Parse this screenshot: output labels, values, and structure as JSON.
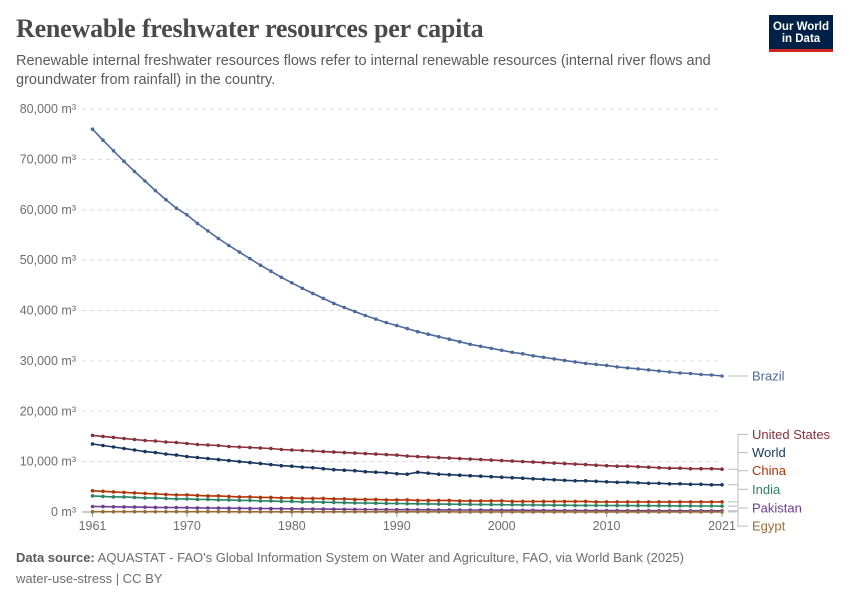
{
  "header": {
    "title": "Renewable freshwater resources per capita",
    "subtitle": "Renewable internal freshwater resources flows refer to internal renewable resources (internal river flows and groundwater from rainfall) in the country."
  },
  "logo": {
    "line1": "Our World",
    "line2": "in Data",
    "bg_color": "#002147",
    "accent_color": "#ce261e"
  },
  "footer": {
    "source_label": "Data source:",
    "source_text": "AQUASTAT - FAO's Global Information System on Water and Agriculture, FAO, via World Bank (2025)",
    "slug": "water-use-stress | CC BY"
  },
  "chart_data": {
    "type": "line",
    "title": "Renewable freshwater resources per capita",
    "xlabel": "",
    "ylabel": "",
    "x": [
      1961,
      1962,
      1963,
      1964,
      1965,
      1966,
      1967,
      1968,
      1969,
      1970,
      1971,
      1972,
      1973,
      1974,
      1975,
      1976,
      1977,
      1978,
      1979,
      1980,
      1981,
      1982,
      1983,
      1984,
      1985,
      1986,
      1987,
      1988,
      1989,
      1990,
      1991,
      1992,
      1993,
      1994,
      1995,
      1996,
      1997,
      1998,
      1999,
      2000,
      2001,
      2002,
      2003,
      2004,
      2005,
      2006,
      2007,
      2008,
      2009,
      2010,
      2011,
      2012,
      2013,
      2014,
      2015,
      2016,
      2017,
      2018,
      2019,
      2020,
      2021
    ],
    "x_ticks": [
      "1961",
      "1970",
      "1980",
      "1990",
      "2000",
      "2010",
      "2021"
    ],
    "x_tick_values": [
      1961,
      1970,
      1980,
      1990,
      2000,
      2010,
      2021
    ],
    "xlim": [
      1960,
      2021
    ],
    "ylim": [
      0,
      80000
    ],
    "y_ticks": [
      0,
      10000,
      20000,
      30000,
      40000,
      50000,
      60000,
      70000,
      80000
    ],
    "y_tick_labels": [
      "0 m³",
      "10,000 m³",
      "20,000 m³",
      "30,000 m³",
      "40,000 m³",
      "50,000 m³",
      "60,000 m³",
      "70,000 m³",
      "80,000 m³"
    ],
    "grid": true,
    "legend": "right-end labels",
    "series": [
      {
        "name": "Brazil",
        "color": "#4c6a9c",
        "label_y": 27000,
        "values": [
          76000,
          73800,
          71700,
          69600,
          67600,
          65700,
          63800,
          62000,
          60300,
          59000,
          57300,
          55800,
          54300,
          52900,
          51600,
          50300,
          49000,
          47800,
          46600,
          45500,
          44400,
          43400,
          42400,
          41400,
          40600,
          39800,
          39000,
          38300,
          37600,
          37000,
          36400,
          35800,
          35300,
          34800,
          34300,
          33800,
          33300,
          32900,
          32500,
          32100,
          31700,
          31400,
          31000,
          30700,
          30400,
          30100,
          29800,
          29500,
          29300,
          29100,
          28800,
          28600,
          28400,
          28200,
          28000,
          27800,
          27600,
          27500,
          27300,
          27200,
          27000
        ]
      },
      {
        "name": "United States",
        "color": "#883039",
        "label_y": 15400,
        "values": [
          15200,
          15000,
          14800,
          14600,
          14400,
          14200,
          14100,
          13900,
          13800,
          13600,
          13400,
          13300,
          13200,
          13000,
          12900,
          12800,
          12700,
          12600,
          12400,
          12300,
          12200,
          12100,
          12000,
          11900,
          11800,
          11700,
          11600,
          11500,
          11400,
          11300,
          11100,
          11000,
          10900,
          10800,
          10700,
          10600,
          10500,
          10400,
          10300,
          10200,
          10100,
          10000,
          9900,
          9800,
          9700,
          9600,
          9500,
          9400,
          9300,
          9200,
          9100,
          9100,
          9000,
          8900,
          8800,
          8700,
          8700,
          8600,
          8600,
          8600,
          8500
        ]
      },
      {
        "name": "World",
        "color": "#18375f",
        "label_y": 11800,
        "values": [
          13500,
          13200,
          12900,
          12600,
          12300,
          12000,
          11800,
          11500,
          11300,
          11000,
          10800,
          10600,
          10400,
          10200,
          10000,
          9800,
          9600,
          9400,
          9200,
          9100,
          8900,
          8800,
          8600,
          8400,
          8300,
          8200,
          8000,
          7900,
          7800,
          7600,
          7500,
          7900,
          7700,
          7500,
          7400,
          7300,
          7200,
          7100,
          7000,
          6900,
          6800,
          6700,
          6600,
          6500,
          6400,
          6300,
          6200,
          6200,
          6100,
          6000,
          5900,
          5900,
          5800,
          5700,
          5700,
          5600,
          5600,
          5500,
          5500,
          5400,
          5400
        ]
      },
      {
        "name": "China",
        "color": "#b13507",
        "label_y": 8200,
        "values": [
          4200,
          4100,
          4000,
          3900,
          3800,
          3700,
          3600,
          3500,
          3400,
          3400,
          3300,
          3200,
          3200,
          3100,
          3000,
          3000,
          2900,
          2900,
          2800,
          2800,
          2700,
          2700,
          2700,
          2600,
          2600,
          2500,
          2500,
          2500,
          2400,
          2400,
          2400,
          2300,
          2300,
          2300,
          2300,
          2200,
          2200,
          2200,
          2200,
          2200,
          2100,
          2100,
          2100,
          2100,
          2100,
          2100,
          2100,
          2100,
          2000,
          2000,
          2000,
          2000,
          2000,
          2000,
          2000,
          2000,
          2000,
          2000,
          2000,
          2000,
          2000
        ]
      },
      {
        "name": "India",
        "color": "#2c8465",
        "label_y": 4500,
        "values": [
          3200,
          3100,
          3000,
          3000,
          2900,
          2800,
          2800,
          2700,
          2600,
          2600,
          2500,
          2500,
          2400,
          2400,
          2300,
          2300,
          2200,
          2200,
          2100,
          2100,
          2000,
          2000,
          1950,
          1900,
          1850,
          1800,
          1780,
          1750,
          1700,
          1680,
          1650,
          1620,
          1600,
          1570,
          1550,
          1520,
          1500,
          1480,
          1460,
          1440,
          1420,
          1400,
          1380,
          1370,
          1350,
          1340,
          1320,
          1310,
          1300,
          1290,
          1280,
          1270,
          1260,
          1250,
          1240,
          1230,
          1220,
          1210,
          1200,
          1190,
          1180
        ]
      },
      {
        "name": "Pakistan",
        "color": "#6d3e91",
        "label_y": 800,
        "values": [
          1100,
          1070,
          1040,
          1010,
          980,
          950,
          920,
          890,
          870,
          850,
          820,
          800,
          780,
          760,
          740,
          720,
          700,
          680,
          660,
          640,
          620,
          600,
          580,
          560,
          540,
          520,
          500,
          490,
          480,
          460,
          450,
          440,
          430,
          420,
          410,
          400,
          390,
          380,
          370,
          360,
          350,
          340,
          330,
          320,
          310,
          300,
          300,
          290,
          280,
          280,
          270,
          260,
          260,
          250,
          250,
          240,
          240,
          230,
          230,
          230,
          230
        ]
      },
      {
        "name": "Egypt",
        "color": "#996d39",
        "label_y": -2800,
        "values": [
          60,
          60,
          60,
          60,
          60,
          55,
          55,
          55,
          55,
          50,
          50,
          50,
          50,
          50,
          45,
          45,
          45,
          45,
          45,
          40,
          40,
          40,
          40,
          40,
          35,
          35,
          35,
          35,
          35,
          30,
          30,
          30,
          30,
          30,
          30,
          28,
          28,
          28,
          28,
          28,
          26,
          26,
          26,
          26,
          26,
          25,
          25,
          25,
          25,
          25,
          24,
          24,
          24,
          24,
          24,
          23,
          23,
          23,
          23,
          22,
          22
        ]
      }
    ]
  }
}
